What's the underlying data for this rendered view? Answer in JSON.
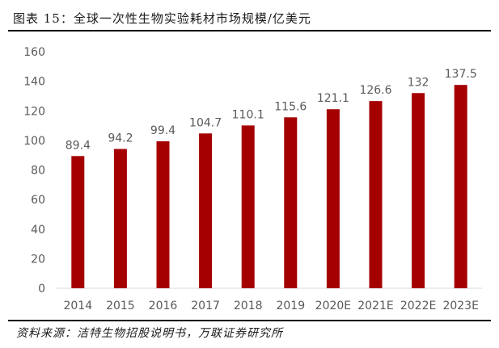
{
  "header": {
    "title": "图表 15：全球一次性生物实验耗材市场规模/亿美元"
  },
  "footer": {
    "source": "资料来源：洁特生物招股说明书，万联证券研究所"
  },
  "chart_data": {
    "type": "bar",
    "title": "图表 15：全球一次性生物实验耗材市场规模/亿美元",
    "categories": [
      "2014",
      "2015",
      "2016",
      "2017",
      "2018",
      "2019",
      "2020E",
      "2021E",
      "2022E",
      "2023E"
    ],
    "values": [
      89.4,
      94.2,
      99.4,
      104.7,
      110.1,
      115.6,
      121.1,
      126.6,
      132,
      137.5
    ],
    "data_labels": [
      "89.4",
      "94.2",
      "99.4",
      "104.7",
      "110.1",
      "115.6",
      "121.1",
      "126.6",
      "132",
      "137.5"
    ],
    "yticks": [
      0,
      20,
      40,
      60,
      80,
      100,
      120,
      140,
      160
    ],
    "ylim": [
      0,
      160
    ],
    "xlabel": "",
    "ylabel": "",
    "grid": false,
    "bar_color": "#a50000"
  }
}
